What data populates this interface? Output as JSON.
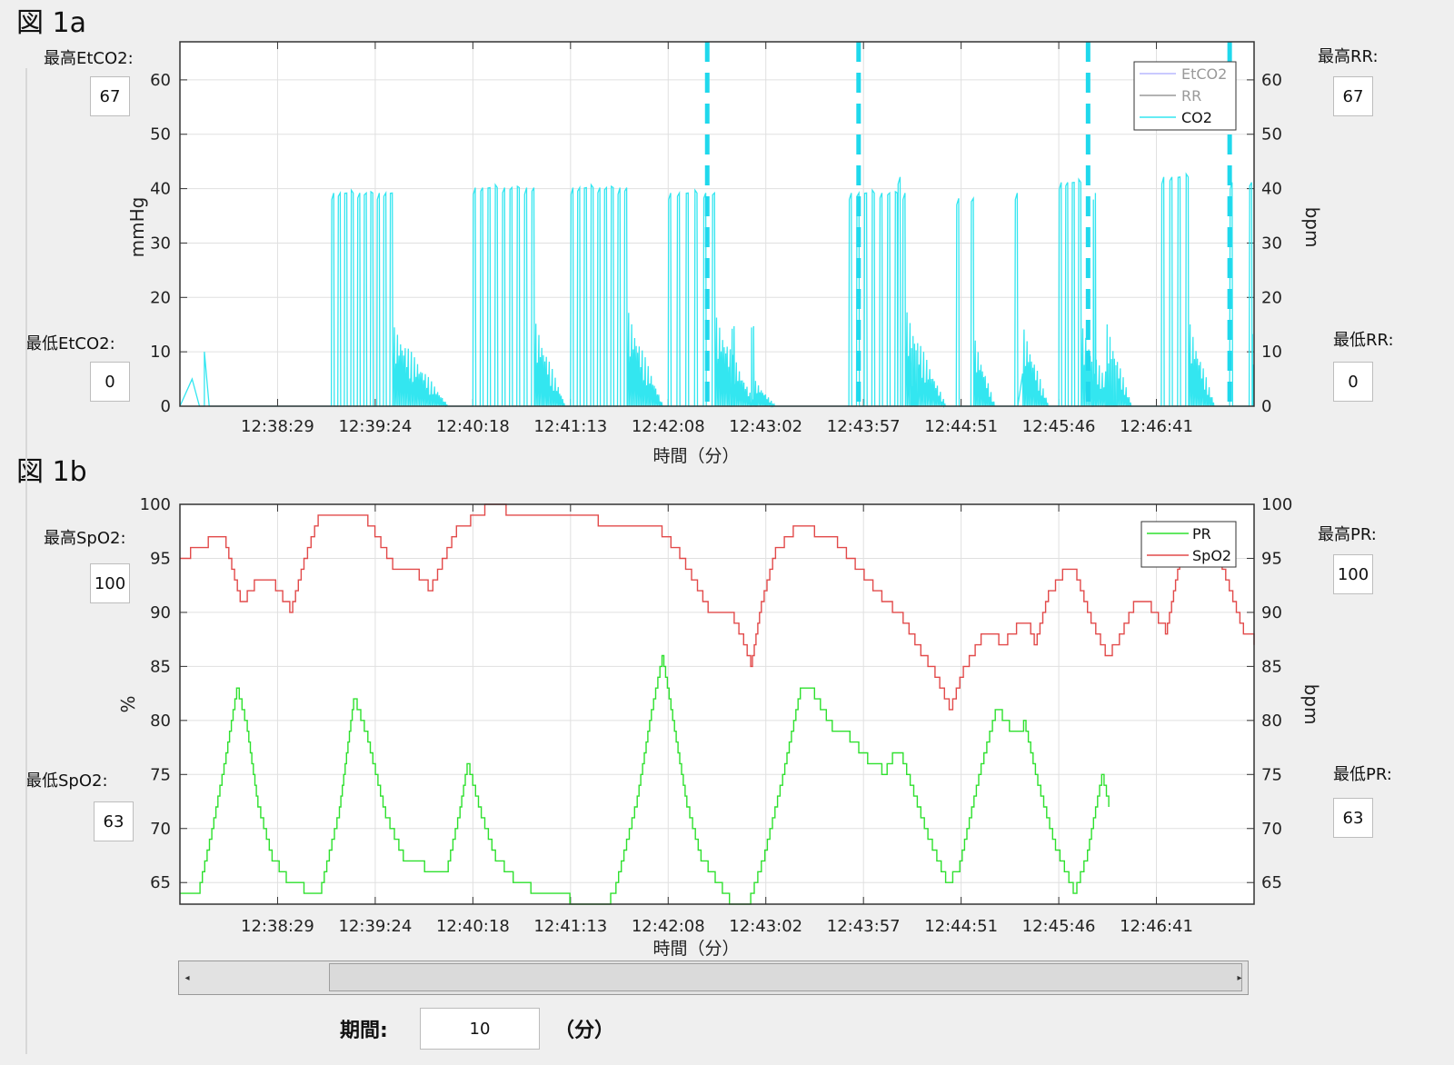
{
  "figA": {
    "label": "図 1a",
    "max_etco2_label": "最高EtCO2:",
    "max_etco2_value": "67",
    "min_etco2_label": "最低EtCO2:",
    "min_etco2_value": "0",
    "max_rr_label": "最高RR:",
    "max_rr_value": "67",
    "min_rr_label": "最低RR:",
    "min_rr_value": "0"
  },
  "figB": {
    "label": "図 1b",
    "max_spo2_label": "最高SpO2:",
    "max_spo2_value": "100",
    "min_spo2_label": "最低SpO2:",
    "min_spo2_value": "63",
    "max_pr_label": "最高PR:",
    "max_pr_value": "100",
    "min_pr_label": "最低PR:",
    "min_pr_value": "63"
  },
  "duration": {
    "label": "期間:",
    "value": "10",
    "unit": "（分）"
  },
  "colors": {
    "co2": "#33e6f0",
    "dashed": "#1fd8ec",
    "etco2": "#b8b8ff",
    "rr": "#9a9a9a",
    "pr": "#2ee02e",
    "spo2": "#e24a4a",
    "grid": "#e0e0e0"
  },
  "chart_data": [
    {
      "type": "line",
      "xlabel": "時間（分）",
      "ylabel_left": "mmHg",
      "ylabel_right": "bpm",
      "ylim": [
        0,
        67
      ],
      "yticks": [
        0,
        10,
        20,
        30,
        40,
        50,
        60
      ],
      "x_ticks": [
        "12:38:29",
        "12:39:24",
        "12:40:18",
        "12:41:13",
        "12:42:08",
        "12:43:02",
        "12:43:57",
        "12:44:51",
        "12:45:46",
        "12:46:41"
      ],
      "grid": true,
      "legend_position": "top-right",
      "legend": [
        "EtCO2",
        "RR",
        "CO2"
      ],
      "x_minutes_range": [
        -1.0,
        10.0
      ],
      "dashed_markers_minutes": [
        4.4,
        5.95,
        8.3,
        9.75
      ],
      "co2_bursts": [
        {
          "start_min": 0.55,
          "end_min": 1.15,
          "peak": 40,
          "breaths": 10,
          "tail_until_min": 1.75,
          "tail_level": 15
        },
        {
          "start_min": 2.0,
          "end_min": 2.6,
          "peak": 41,
          "breaths": 9,
          "tail_until_min": 2.95,
          "tail_level": 16
        },
        {
          "start_min": 3.0,
          "end_min": 3.55,
          "peak": 41,
          "breaths": 9,
          "tail_until_min": 3.95,
          "tail_level": 18
        },
        {
          "start_min": 4.0,
          "end_min": 4.45,
          "peak": 40,
          "breaths": 6,
          "tail_until_min": 4.9,
          "tail_level": 17
        },
        {
          "start_min": 4.65,
          "end_min": 4.85,
          "peak": 15,
          "breaths": 2,
          "tail_until_min": 5.1,
          "tail_level": 5
        },
        {
          "start_min": 5.85,
          "end_min": 6.4,
          "peak": 40,
          "breaths": 8,
          "tail_until_min": 6.85,
          "tail_level": 18
        },
        {
          "start_min": 6.35,
          "end_min": 6.45,
          "peak": 43,
          "breaths": 1,
          "tail_until_min": 6.55,
          "tail_level": 10
        },
        {
          "start_min": 6.95,
          "end_min": 7.1,
          "peak": 39,
          "breaths": 2,
          "tail_until_min": 7.35,
          "tail_level": 13
        },
        {
          "start_min": 7.55,
          "end_min": 7.6,
          "peak": 40,
          "breaths": 1,
          "tail_until_min": 7.9,
          "tail_level": 15
        },
        {
          "start_min": 8.0,
          "end_min": 8.2,
          "peak": 42,
          "breaths": 4,
          "tail_until_min": 8.6,
          "tail_level": 15
        },
        {
          "start_min": 8.35,
          "end_min": 8.45,
          "peak": 40,
          "breaths": 1,
          "tail_until_min": 8.75,
          "tail_level": 16
        },
        {
          "start_min": 9.05,
          "end_min": 9.3,
          "peak": 43,
          "breaths": 4,
          "tail_until_min": 9.6,
          "tail_level": 16
        },
        {
          "start_min": 9.75,
          "end_min": 9.95,
          "peak": 42,
          "breaths": 2,
          "tail_until_min": 10.0,
          "tail_level": 16
        }
      ],
      "co2_lowlevel": [
        {
          "start_min": -1.0,
          "end_min": -0.75,
          "peak": 5
        },
        {
          "start_min": -0.8,
          "end_min": -0.7,
          "peak": 10
        }
      ]
    },
    {
      "type": "line",
      "xlabel": "時間（分）",
      "ylabel_left": "%",
      "ylabel_right": "bpm",
      "ylim": [
        63,
        100
      ],
      "yticks": [
        65,
        70,
        75,
        80,
        85,
        90,
        95,
        100
      ],
      "x_ticks": [
        "12:38:29",
        "12:39:24",
        "12:40:18",
        "12:41:13",
        "12:42:08",
        "12:43:02",
        "12:43:57",
        "12:44:51",
        "12:45:46",
        "12:46:41"
      ],
      "grid": true,
      "legend_position": "top-right",
      "x_minutes_range": [
        -1.0,
        10.0
      ],
      "series": [
        {
          "name": "PR",
          "points": [
            [
              -1.0,
              64
            ],
            [
              -0.75,
              64
            ],
            [
              -0.55,
              70
            ],
            [
              -0.35,
              77
            ],
            [
              -0.2,
              83
            ],
            [
              -0.05,
              79
            ],
            [
              0.1,
              72
            ],
            [
              0.3,
              67
            ],
            [
              0.5,
              65
            ],
            [
              0.75,
              64
            ],
            [
              1.0,
              65
            ],
            [
              1.25,
              72
            ],
            [
              1.45,
              82
            ],
            [
              1.65,
              78
            ],
            [
              1.9,
              71
            ],
            [
              2.15,
              67
            ],
            [
              2.45,
              66
            ],
            [
              2.75,
              66
            ],
            [
              2.95,
              72
            ],
            [
              3.05,
              76
            ],
            [
              3.25,
              71
            ],
            [
              3.45,
              67
            ],
            [
              3.7,
              65
            ],
            [
              3.95,
              64
            ],
            [
              4.2,
              64
            ],
            [
              4.5,
              63
            ],
            [
              4.85,
              63
            ],
            [
              5.0,
              63
            ],
            [
              5.15,
              65
            ],
            [
              5.45,
              73
            ],
            [
              5.65,
              81
            ],
            [
              5.8,
              86
            ],
            [
              5.95,
              80
            ],
            [
              6.15,
              72
            ],
            [
              6.35,
              67
            ],
            [
              6.55,
              65
            ],
            [
              6.75,
              63
            ],
            [
              7.0,
              63
            ],
            [
              7.25,
              68
            ],
            [
              7.5,
              75
            ],
            [
              7.75,
              83
            ],
            [
              7.95,
              82
            ],
            [
              8.2,
              79
            ],
            [
              8.45,
              78
            ],
            [
              8.7,
              76
            ],
            [
              8.9,
              75
            ],
            [
              9.05,
              77
            ],
            [
              9.15,
              77
            ],
            [
              9.3,
              74
            ],
            [
              9.55,
              69
            ],
            [
              9.8,
              65
            ],
            [
              10.0,
              67
            ],
            [
              10.3,
              76
            ],
            [
              10.5,
              81
            ],
            [
              10.7,
              79
            ],
            [
              10.9,
              80
            ],
            [
              11.1,
              74
            ],
            [
              11.35,
              68
            ],
            [
              11.6,
              64
            ],
            [
              11.8,
              68
            ],
            [
              12.0,
              75
            ],
            [
              12.1,
              72
            ]
          ]
        },
        {
          "name": "SpO2",
          "points": [
            [
              -1.0,
              95
            ],
            [
              -0.85,
              96
            ],
            [
              -0.6,
              97
            ],
            [
              -0.35,
              96
            ],
            [
              -0.15,
              91
            ],
            [
              0.05,
              93
            ],
            [
              0.35,
              92
            ],
            [
              0.55,
              90
            ],
            [
              0.75,
              95
            ],
            [
              0.95,
              99
            ],
            [
              1.3,
              99
            ],
            [
              1.55,
              99
            ],
            [
              1.75,
              97
            ],
            [
              2.0,
              94
            ],
            [
              2.25,
              94
            ],
            [
              2.5,
              92
            ],
            [
              2.7,
              95
            ],
            [
              2.9,
              98
            ],
            [
              3.1,
              99
            ],
            [
              3.3,
              100
            ],
            [
              3.6,
              99
            ],
            [
              4.0,
              99
            ],
            [
              4.4,
              99
            ],
            [
              4.55,
              99
            ],
            [
              4.9,
              98
            ],
            [
              5.5,
              98
            ],
            [
              5.8,
              97
            ],
            [
              6.05,
              95
            ],
            [
              6.3,
              92
            ],
            [
              6.45,
              90
            ],
            [
              6.75,
              90
            ],
            [
              6.95,
              87
            ],
            [
              7.05,
              85
            ],
            [
              7.2,
              91
            ],
            [
              7.4,
              96
            ],
            [
              7.65,
              98
            ],
            [
              7.95,
              97
            ],
            [
              8.15,
              97
            ],
            [
              8.4,
              95
            ],
            [
              8.65,
              93
            ],
            [
              8.9,
              91
            ],
            [
              9.2,
              89
            ],
            [
              9.45,
              86
            ],
            [
              9.65,
              84
            ],
            [
              9.85,
              81
            ],
            [
              10.05,
              85
            ],
            [
              10.3,
              88
            ],
            [
              10.55,
              87
            ],
            [
              10.8,
              89
            ],
            [
              10.95,
              89
            ],
            [
              11.05,
              87
            ],
            [
              11.25,
              92
            ],
            [
              11.45,
              94
            ],
            [
              11.65,
              93
            ],
            [
              11.85,
              89
            ],
            [
              12.05,
              86
            ],
            [
              12.25,
              88
            ],
            [
              12.45,
              91
            ],
            [
              12.7,
              90
            ],
            [
              12.9,
              88
            ],
            [
              13.1,
              95
            ],
            [
              13.3,
              98
            ],
            [
              13.55,
              97
            ],
            [
              13.75,
              93
            ],
            [
              14.0,
              88
            ],
            [
              14.15,
              87
            ]
          ]
        }
      ]
    }
  ]
}
